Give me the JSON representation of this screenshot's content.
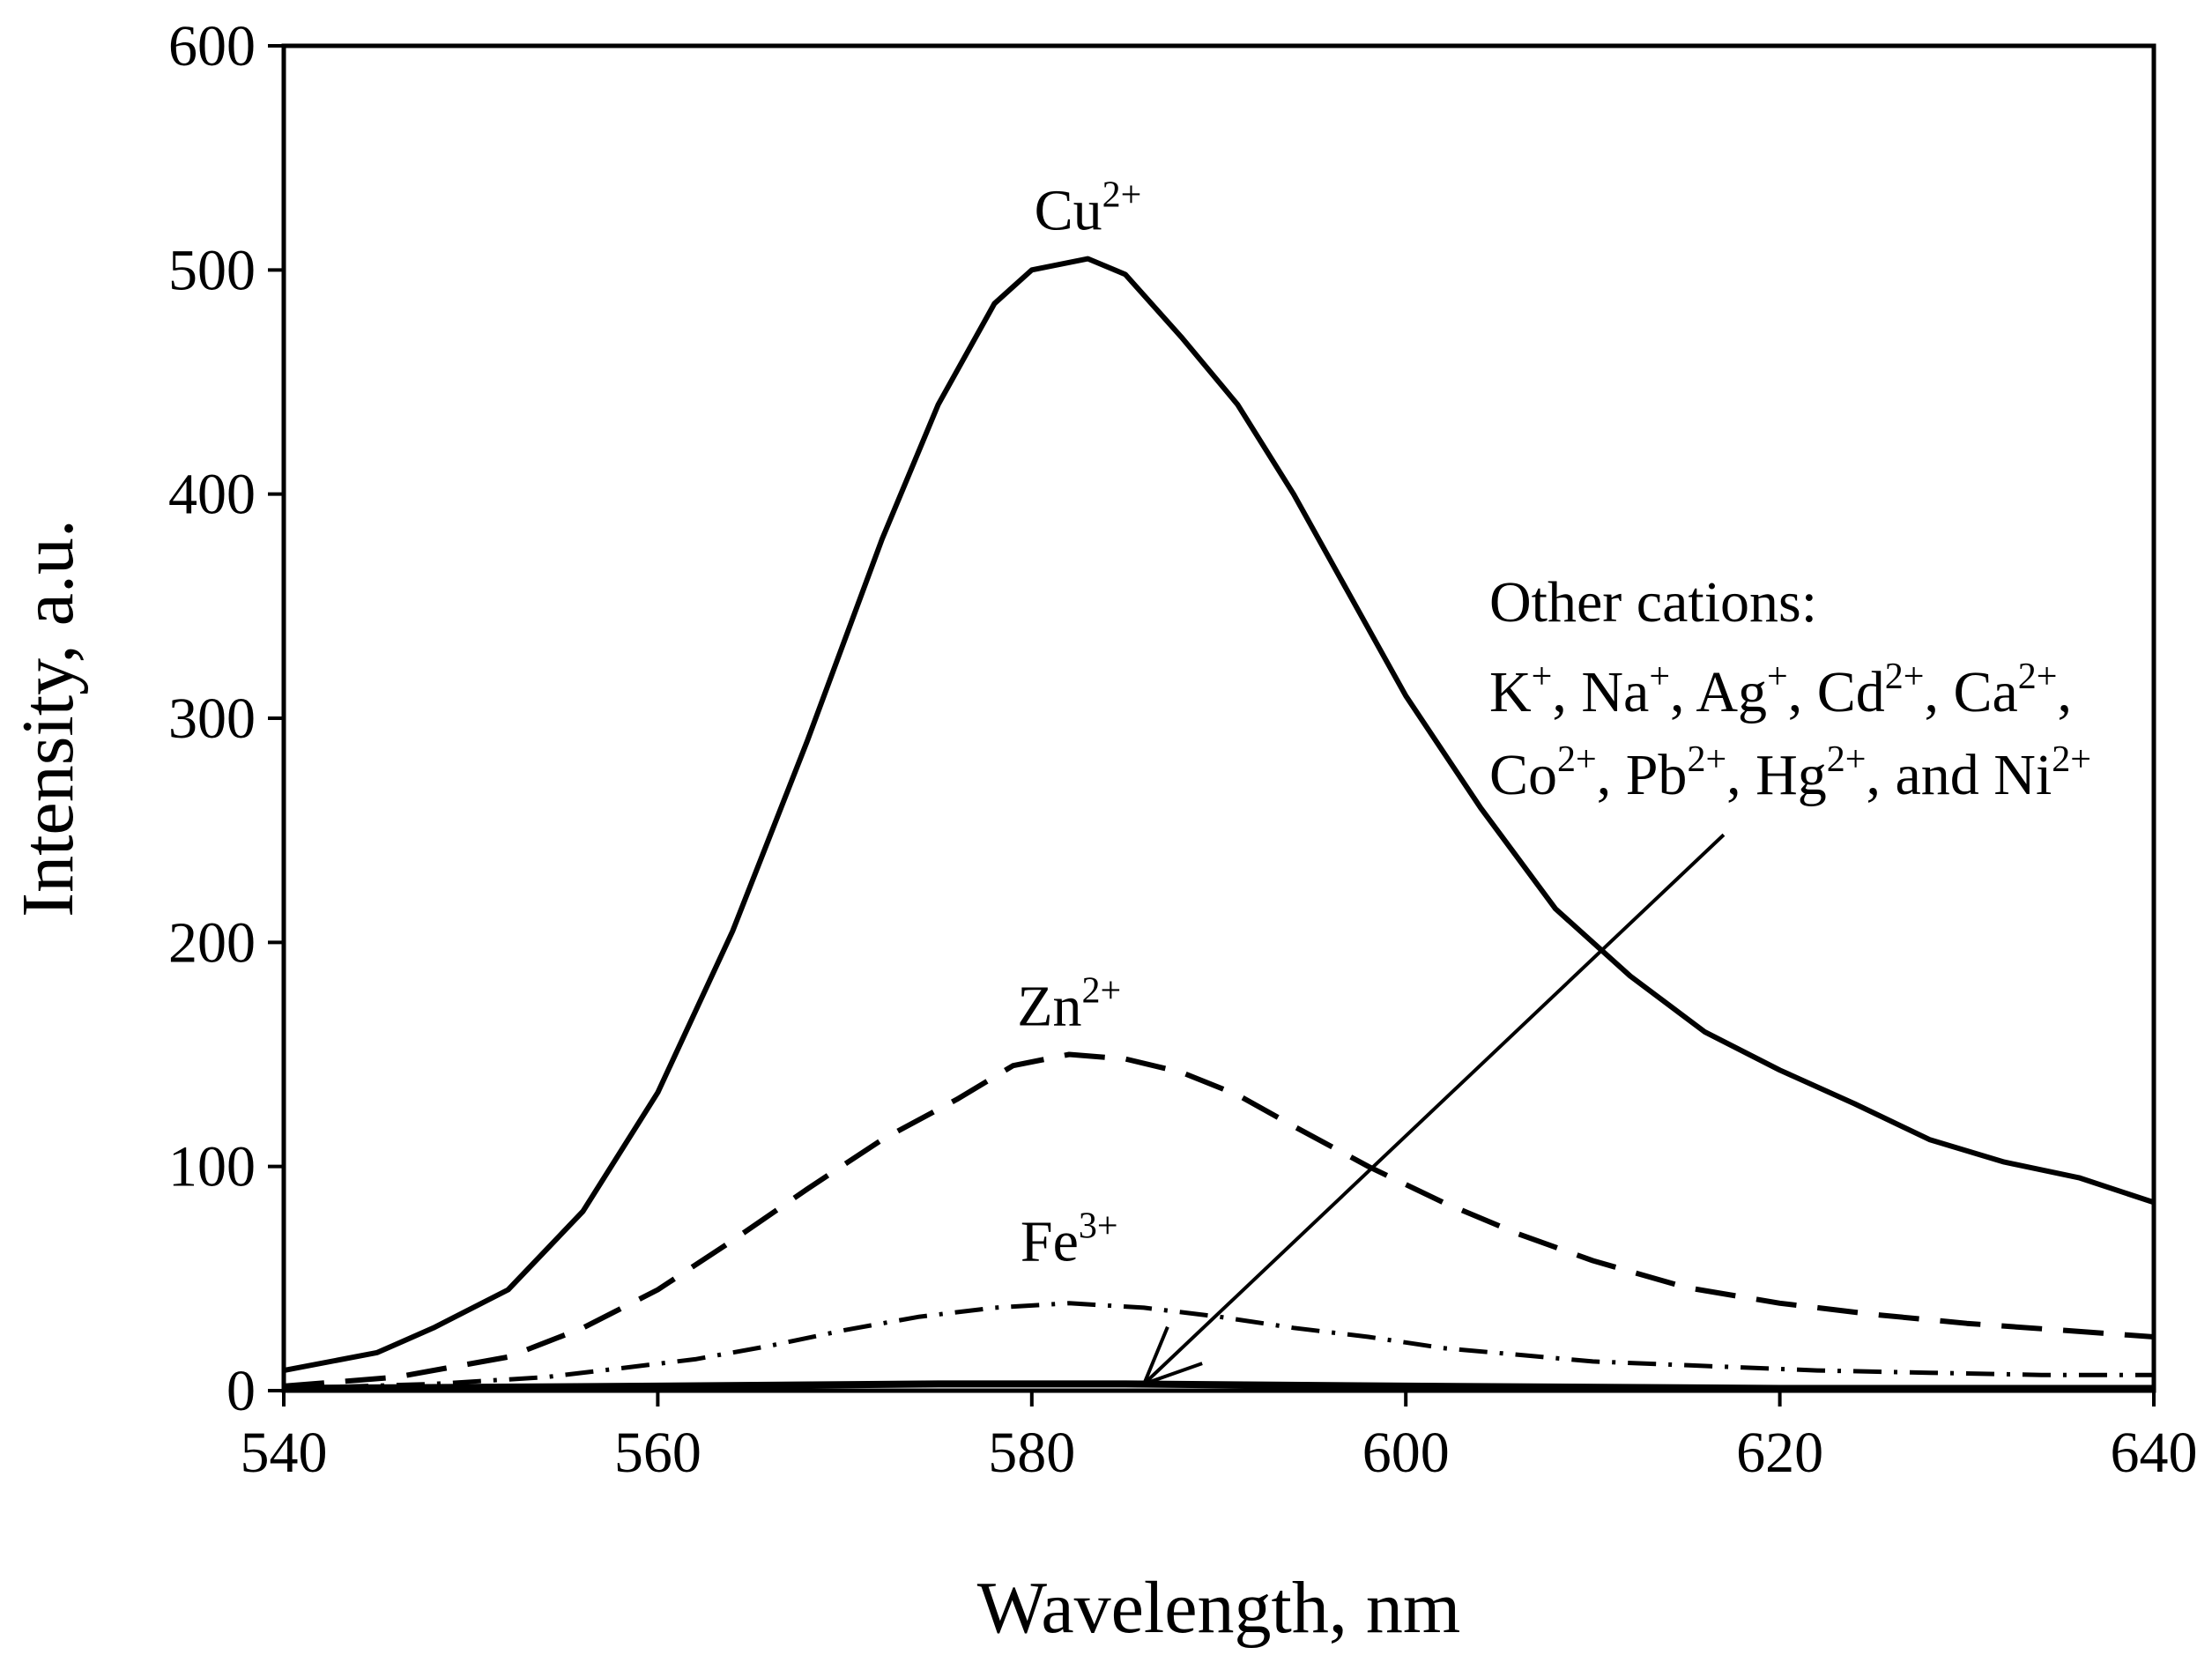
{
  "chart_data": {
    "type": "line",
    "title": "",
    "xlabel": "Wavelength, nm",
    "ylabel": "Intensity, a.u.",
    "xlim": [
      540,
      640
    ],
    "ylim": [
      0,
      600
    ],
    "x_ticks": [
      540,
      560,
      580,
      600,
      620,
      640
    ],
    "y_ticks": [
      0,
      100,
      200,
      300,
      400,
      500,
      600
    ],
    "grid": false,
    "legend": "none",
    "series": [
      {
        "name": "Cu2+",
        "style": "solid",
        "x": [
          540,
          545,
          548,
          552,
          556,
          560,
          564,
          568,
          572,
          575,
          578,
          580,
          583,
          585,
          588,
          591,
          594,
          597,
          600,
          604,
          608,
          612,
          616,
          620,
          624,
          628,
          632,
          636,
          640
        ],
        "y": [
          9,
          17,
          28,
          45,
          80,
          133,
          205,
          290,
          380,
          440,
          485,
          500,
          505,
          498,
          470,
          440,
          400,
          355,
          310,
          260,
          215,
          185,
          160,
          143,
          128,
          112,
          102,
          95,
          84
        ]
      },
      {
        "name": "Zn2+",
        "style": "dashed",
        "x": [
          540,
          546,
          552,
          556,
          560,
          564,
          568,
          572,
          576,
          579,
          582,
          585,
          588,
          591,
          594,
          598,
          602,
          606,
          610,
          615,
          620,
          625,
          630,
          635,
          640
        ],
        "y": [
          2,
          6,
          15,
          28,
          45,
          67,
          90,
          112,
          130,
          145,
          150,
          148,
          142,
          132,
          118,
          100,
          84,
          70,
          58,
          46,
          39,
          34,
          30,
          27,
          24
        ]
      },
      {
        "name": "Fe3+",
        "style": "dash-dot",
        "x": [
          540,
          548,
          554,
          558,
          562,
          566,
          570,
          574,
          578,
          582,
          586,
          590,
          594,
          598,
          602,
          606,
          610,
          616,
          622,
          628,
          634,
          640
        ],
        "y": [
          1,
          3,
          6,
          10,
          14,
          20,
          27,
          33,
          37,
          39,
          37,
          33,
          28,
          24,
          19,
          16,
          13,
          11,
          9,
          8,
          7,
          7
        ]
      },
      {
        "name": "Other cations",
        "style": "solid-thick",
        "x": [
          540,
          560,
          575,
          585,
          600,
          620,
          640
        ],
        "y": [
          1,
          2,
          3,
          3,
          2,
          1,
          1
        ]
      }
    ],
    "annotations": [
      {
        "id": "cu",
        "base": "Cu",
        "sup": "2+",
        "x": 583,
        "y": 518
      },
      {
        "id": "zn",
        "base": "Zn",
        "sup": "2+",
        "x": 582,
        "y": 163
      },
      {
        "id": "fe",
        "base": "Fe",
        "sup": "3+",
        "x": 582,
        "y": 58
      },
      {
        "id": "other",
        "line1": "Other cations:",
        "line2": [
          {
            "base": "K",
            "sup": "+",
            "tail": ", "
          },
          {
            "base": "Na",
            "sup": "+",
            "tail": ", "
          },
          {
            "base": "Ag",
            "sup": "+",
            "tail": ", "
          },
          {
            "base": "Cd",
            "sup": "2+",
            "tail": ", "
          },
          {
            "base": "Ca",
            "sup": "2+",
            "tail": ","
          }
        ],
        "line3": [
          {
            "base": "Co",
            "sup": "2+",
            "tail": ", "
          },
          {
            "base": "Pb",
            "sup": "2+",
            "tail": ", "
          },
          {
            "base": "Hg",
            "sup": "2+",
            "tail": ", and "
          },
          {
            "base": "Ni",
            "sup": "2+",
            "tail": ""
          }
        ],
        "arrow_from": [
          617,
          248
        ],
        "arrow_to": [
          586,
          3
        ]
      }
    ]
  }
}
